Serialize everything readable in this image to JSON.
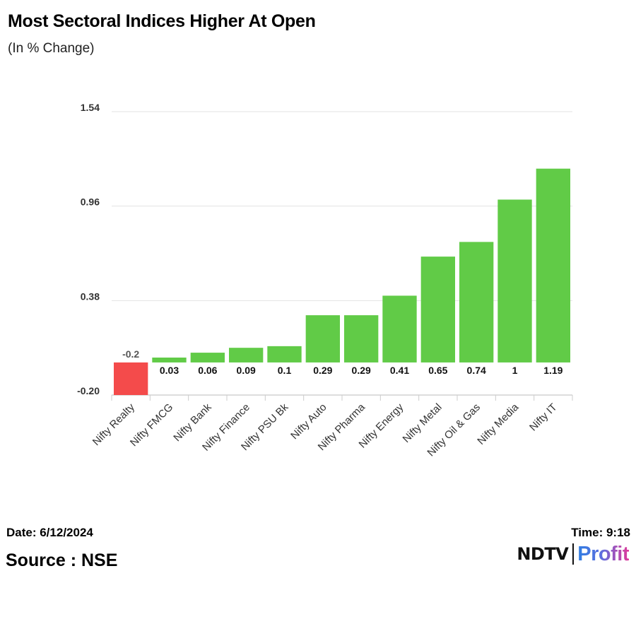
{
  "header": {
    "title": "Most Sectoral Indices Higher At Open",
    "subtitle": "(In % Change)"
  },
  "chart_data": {
    "type": "bar",
    "title": "Most Sectoral Indices Higher At Open",
    "subtitle": "(In % Change)",
    "xlabel": "",
    "ylabel": "",
    "categories": [
      "Nifty Realty",
      "Nifty FMCG",
      "Nifty Bank",
      "Nifty Finance",
      "Nifty PSU Bk",
      "Nifty Auto",
      "Nifty Pharma",
      "Nifty Energy",
      "Nifty Metal",
      "Nifty Oil & Gas",
      "Nifty Media",
      "Nifty IT"
    ],
    "values": [
      -0.2,
      0.03,
      0.06,
      0.09,
      0.1,
      0.29,
      0.29,
      0.41,
      0.65,
      0.74,
      1,
      1.19
    ],
    "value_labels": [
      "-0.2",
      "0.03",
      "0.06",
      "0.09",
      "0.1",
      "0.29",
      "0.29",
      "0.41",
      "0.65",
      "0.74",
      "1",
      "1.19"
    ],
    "yticks": [
      -0.2,
      0.38,
      0.96,
      1.54
    ],
    "ytick_labels": [
      "-0.20",
      "0.38",
      "0.96",
      "1.54"
    ],
    "ylim": [
      -0.2,
      1.54
    ],
    "grid": true,
    "positive_color": "#61cb47",
    "negative_color": "#f44b4b"
  },
  "footer": {
    "date": "Date: 6/12/2024",
    "time": "Time: 9:18",
    "source": "Source : NSE",
    "logo_left": "NDTV",
    "logo_right": "Profit"
  }
}
